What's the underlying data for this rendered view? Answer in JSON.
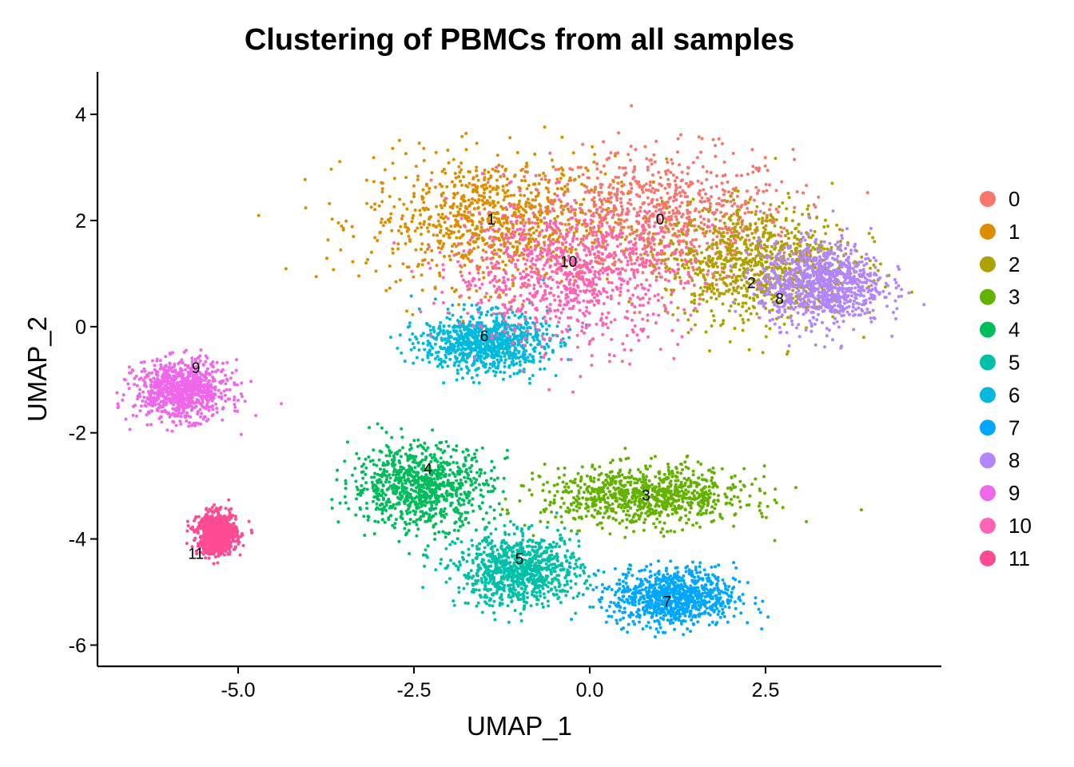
{
  "chart_data": {
    "type": "scatter",
    "title": "Clustering of PBMCs from all samples",
    "xlabel": "UMAP_1",
    "ylabel": "UMAP_2",
    "xlim": [
      -7.0,
      5.0
    ],
    "ylim": [
      -6.4,
      4.8
    ],
    "x_ticks": [
      -5.0,
      -2.5,
      0.0,
      2.5
    ],
    "x_tick_labels": [
      "-5.0",
      "-2.5",
      "0.0",
      "2.5"
    ],
    "y_ticks": [
      -6,
      -4,
      -2,
      0,
      2,
      4
    ],
    "y_tick_labels": [
      "-6",
      "-4",
      "-2",
      "0",
      "2",
      "4"
    ],
    "grid": false,
    "legend_position": "right",
    "series": [
      {
        "name": "0",
        "color": "#F8766D",
        "center": [
          1.0,
          2.0
        ],
        "spread": [
          1.7,
          1.2
        ],
        "label_pos": [
          1.0,
          2.0
        ]
      },
      {
        "name": "1",
        "color": "#DB8E00",
        "center": [
          -1.4,
          2.0
        ],
        "spread": [
          1.6,
          1.1
        ],
        "label_pos": [
          -1.4,
          2.0
        ]
      },
      {
        "name": "2",
        "color": "#AEA200",
        "center": [
          2.4,
          1.2
        ],
        "spread": [
          1.2,
          1.0
        ],
        "label_pos": [
          2.3,
          0.8
        ]
      },
      {
        "name": "3",
        "color": "#64B200",
        "center": [
          0.8,
          -3.2
        ],
        "spread": [
          1.3,
          0.5
        ],
        "label_pos": [
          0.8,
          -3.2
        ]
      },
      {
        "name": "4",
        "color": "#00BD5C",
        "center": [
          -2.4,
          -3.0
        ],
        "spread": [
          0.9,
          0.7
        ],
        "label_pos": [
          -2.3,
          -2.7
        ]
      },
      {
        "name": "5",
        "color": "#00C1A7",
        "center": [
          -1.0,
          -4.6
        ],
        "spread": [
          0.8,
          0.6
        ],
        "label_pos": [
          -1.0,
          -4.4
        ]
      },
      {
        "name": "6",
        "color": "#00BADE",
        "center": [
          -1.5,
          -0.3
        ],
        "spread": [
          0.8,
          0.5
        ],
        "label_pos": [
          -1.5,
          -0.2
        ]
      },
      {
        "name": "7",
        "color": "#00A6FF",
        "center": [
          1.2,
          -5.1
        ],
        "spread": [
          0.8,
          0.5
        ],
        "label_pos": [
          1.1,
          -5.2
        ]
      },
      {
        "name": "8",
        "color": "#B385FF",
        "center": [
          3.3,
          0.8
        ],
        "spread": [
          0.8,
          0.7
        ],
        "label_pos": [
          2.7,
          0.5
        ]
      },
      {
        "name": "9",
        "color": "#EF67EB",
        "center": [
          -5.8,
          -1.2
        ],
        "spread": [
          0.6,
          0.5
        ],
        "label_pos": [
          -5.6,
          -0.8
        ]
      },
      {
        "name": "10",
        "color": "#FF63B6",
        "center": [
          -0.3,
          1.0
        ],
        "spread": [
          1.5,
          1.2
        ],
        "label_pos": [
          -0.3,
          1.2
        ]
      },
      {
        "name": "11",
        "color": "#FF4A94",
        "center": [
          -5.3,
          -3.9
        ],
        "spread": [
          0.25,
          0.35
        ],
        "label_pos": [
          -5.6,
          -4.3
        ]
      }
    ]
  }
}
